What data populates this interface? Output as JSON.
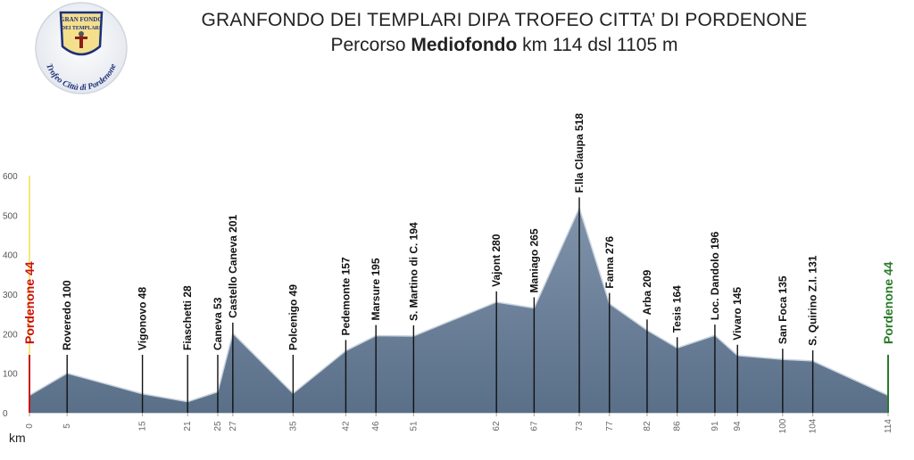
{
  "header": {
    "title": "GRANFONDO DEI TEMPLARI DIPA TROFEO CITTA’ DI PORDENONE",
    "subtitle_prefix": "Percorso ",
    "subtitle_bold": "Mediofondo",
    "subtitle_suffix": " km 114 dsl 1105 m"
  },
  "logo": {
    "top_text": "GRAN FONDO",
    "middle_text": "DEI TEMPLARI",
    "bottom_text": "Trofeo Città di Pordenone"
  },
  "colors": {
    "profile_fill_top": "#7f93ab",
    "profile_fill_bottom": "#5a6f88",
    "start_color": "#cc1111",
    "finish_color": "#2a7a2a",
    "axis_highlight": "#f4e04a"
  },
  "chart_data": {
    "type": "area",
    "xlabel": "km",
    "ylabel": "",
    "ylim": [
      0,
      600
    ],
    "y_ticks": [
      0,
      100,
      200,
      300,
      400,
      500,
      600
    ],
    "grid": false,
    "points": [
      {
        "km": 0,
        "alt": 44,
        "label": "Pordenone 44",
        "kind": "start"
      },
      {
        "km": 5,
        "alt": 100,
        "label": "Roveredo 100"
      },
      {
        "km": 15,
        "alt": 48,
        "label": "Vigonovo 48"
      },
      {
        "km": 21,
        "alt": 28,
        "label": "Fiaschetti 28"
      },
      {
        "km": 25,
        "alt": 53,
        "label": "Caneva 53"
      },
      {
        "km": 27,
        "alt": 201,
        "label": "Castello Caneva 201"
      },
      {
        "km": 35,
        "alt": 49,
        "label": "Polcenigo 49"
      },
      {
        "km": 42,
        "alt": 157,
        "label": "Pedemonte 157"
      },
      {
        "km": 46,
        "alt": 195,
        "label": "Marsure 195"
      },
      {
        "km": 51,
        "alt": 194,
        "label": "S. Martino di C. 194"
      },
      {
        "km": 62,
        "alt": 280,
        "label": "Vajont 280"
      },
      {
        "km": 67,
        "alt": 265,
        "label": "Maniago 265"
      },
      {
        "km": 73,
        "alt": 518,
        "label": "F.lla Claupa 518"
      },
      {
        "km": 77,
        "alt": 276,
        "label": "Fanna 276"
      },
      {
        "km": 82,
        "alt": 209,
        "label": "Arba 209"
      },
      {
        "km": 86,
        "alt": 164,
        "label": "Tesis 164"
      },
      {
        "km": 91,
        "alt": 196,
        "label": "Loc. Dandolo 196"
      },
      {
        "km": 94,
        "alt": 145,
        "label": "Vivaro 145"
      },
      {
        "km": 100,
        "alt": 135,
        "label": "San Foca 135"
      },
      {
        "km": 104,
        "alt": 131,
        "label": "S. Quirino Z.I. 131"
      },
      {
        "km": 114,
        "alt": 44,
        "label": "Pordenone 44",
        "kind": "finish"
      }
    ]
  }
}
